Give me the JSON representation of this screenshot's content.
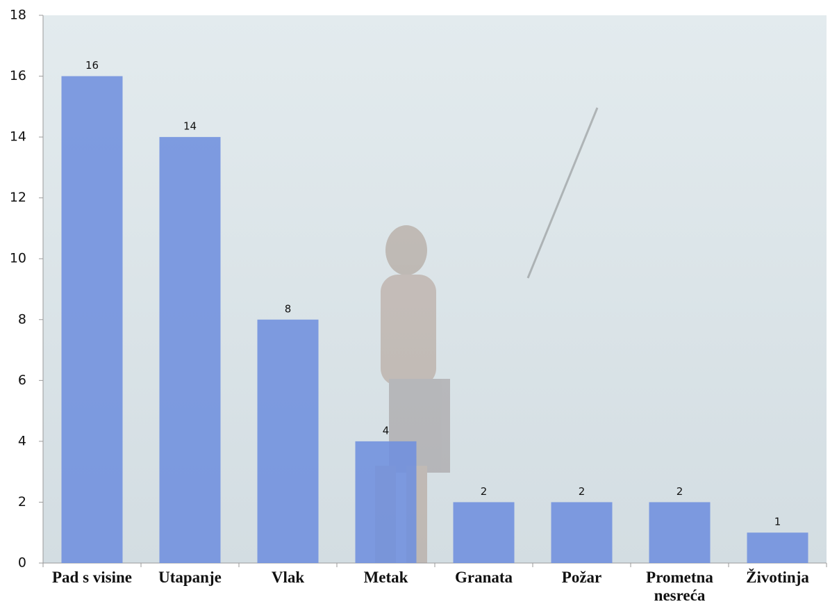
{
  "chart_data": {
    "type": "bar",
    "categories": [
      "Pad s visine",
      "Utapanje",
      "Vlak",
      "Metak",
      "Granata",
      "Požar",
      "Prometna nesreća",
      "Životinja"
    ],
    "values": [
      16,
      14,
      8,
      4,
      2,
      2,
      2,
      1
    ],
    "color": "#6f8fde",
    "ylim": [
      0,
      18
    ],
    "yticks": [
      0,
      2,
      4,
      6,
      8,
      10,
      12,
      14,
      16,
      18
    ]
  }
}
